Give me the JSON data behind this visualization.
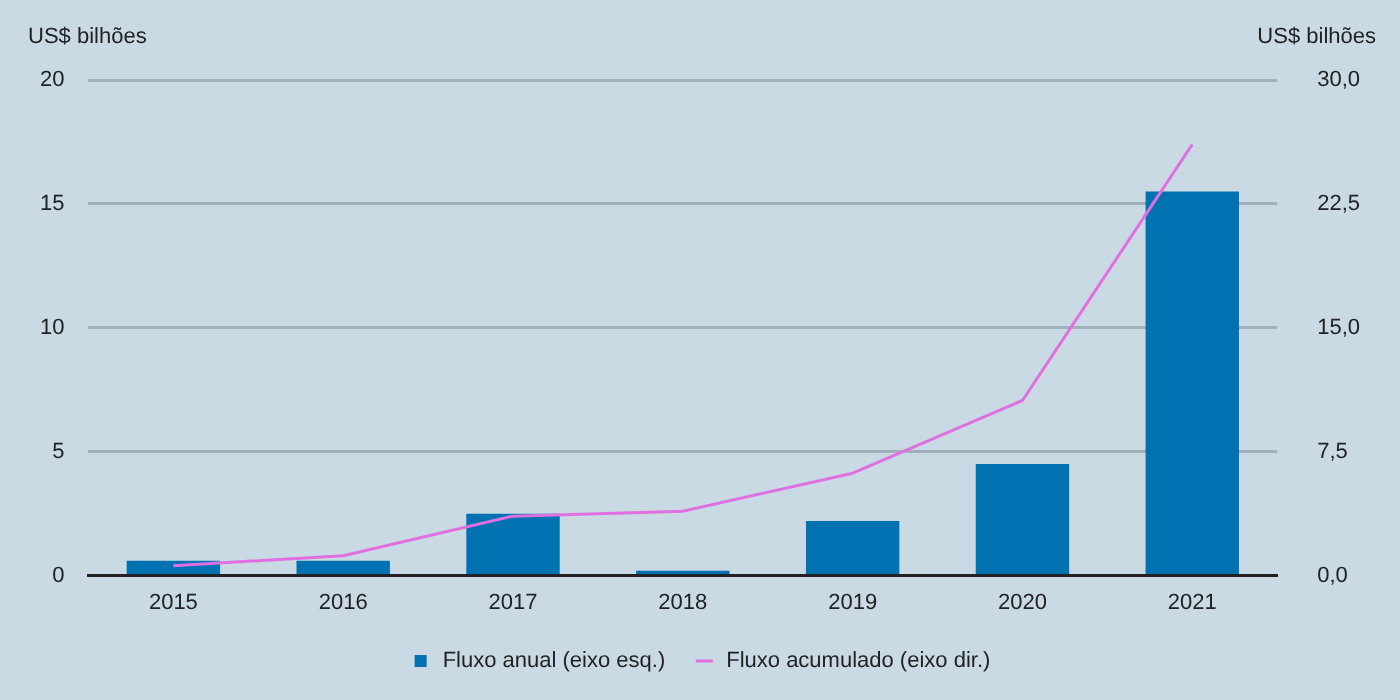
{
  "chart_data": {
    "type": "bar",
    "ylabel": "US$ bilhões",
    "y2label": "US$ bilhões",
    "categories": [
      "2015",
      "2016",
      "2017",
      "2018",
      "2019",
      "2020",
      "2021"
    ],
    "series": [
      {
        "name": "Fluxo anual (eixo esq.)",
        "color": "#0072b2",
        "values": [
          0.6,
          0.6,
          2.5,
          0.2,
          2.2,
          4.5,
          15.5
        ]
      },
      {
        "name": "Fluxo acumulado (eixo dir.)",
        "type": "line",
        "axis": "y2",
        "color": "#e070e0",
        "values": [
          0.6,
          1.2,
          3.6,
          3.9,
          6.2,
          10.6,
          26.1
        ]
      }
    ],
    "ylim": [
      0,
      20
    ],
    "yticks": [
      0,
      5,
      10,
      15,
      20
    ],
    "y2lim": [
      0,
      30
    ],
    "y2ticks": [
      {
        "value": 0,
        "label": "0,0"
      },
      {
        "value": 7.5,
        "label": "7,5"
      },
      {
        "value": 15,
        "label": "15,0"
      },
      {
        "value": 22.5,
        "label": "22,5"
      },
      {
        "value": 30,
        "label": "30,0"
      }
    ],
    "grid": "y",
    "legend": "bottom",
    "marker": "none"
  }
}
